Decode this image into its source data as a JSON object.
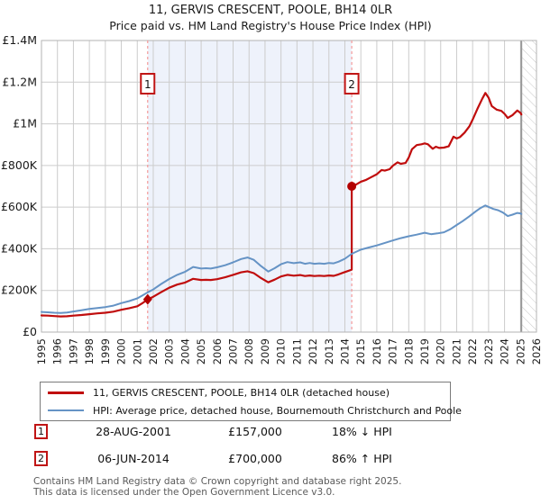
{
  "title": "11, GERVIS CRESCENT, POOLE, BH14 0LR",
  "subtitle": "Price paid vs. HM Land Registry's House Price Index (HPI)",
  "legend": [
    {
      "label": "11, GERVIS CRESCENT, POOLE, BH14 0LR (detached house)",
      "color": "#c00d0d",
      "thickness": 3
    },
    {
      "label": "HPI: Average price, detached house, Bournemouth Christchurch and Poole",
      "color": "#6593c5",
      "thickness": 2.5
    }
  ],
  "annotations": [
    {
      "num": "1",
      "date": "28-AUG-2001",
      "price": "£157,000",
      "delta": "18% ↓ HPI"
    },
    {
      "num": "2",
      "date": "06-JUN-2014",
      "price": "£700,000",
      "delta": "86% ↑ HPI"
    }
  ],
  "footer": {
    "line1": "Contains HM Land Registry data © Crown copyright and database right 2025.",
    "line2": "This data is licensed under the Open Government Licence v3.0."
  },
  "colors": {
    "red_line": "#c00d0d",
    "blue_line": "#6593c5",
    "marker": "#b30000",
    "dashed_line": "#f59a9a",
    "shade": "#eef2fb",
    "grid": "#cccccc",
    "plot_border": "#b3b3b3",
    "hatch_line": "#c8c8c8",
    "hatch_border": "#999999",
    "tick_text": "#1a1a1a",
    "num_box_border": "#c01515"
  },
  "chart_data": {
    "type": "line",
    "title": "11, GERVIS CRESCENT, POOLE, BH14 0LR",
    "subtitle": "Price paid vs. HM Land Registry's House Price Index (HPI)",
    "x_range": [
      1995,
      2026
    ],
    "y_range": [
      0,
      1400000
    ],
    "x_ticks": [
      1995,
      1996,
      1997,
      1998,
      1999,
      2000,
      2001,
      2002,
      2003,
      2004,
      2005,
      2006,
      2007,
      2008,
      2009,
      2010,
      2011,
      2012,
      2013,
      2014,
      2015,
      2016,
      2017,
      2018,
      2019,
      2020,
      2021,
      2022,
      2023,
      2024,
      2025,
      2026
    ],
    "y_ticks": [
      {
        "value": 0,
        "label": "£0"
      },
      {
        "value": 200000,
        "label": "£200K"
      },
      {
        "value": 400000,
        "label": "£400K"
      },
      {
        "value": 600000,
        "label": "£600K"
      },
      {
        "value": 800000,
        "label": "£800K"
      },
      {
        "value": 1000000,
        "label": "£1M"
      },
      {
        "value": 1200000,
        "label": "£1.2M"
      },
      {
        "value": 1400000,
        "label": "£1.4M"
      }
    ],
    "shaded_span": [
      2001.65,
      2014.43
    ],
    "no_data_from": 2025.05,
    "sale_markers": [
      {
        "x": 2001.65,
        "y": 157000,
        "label": "1",
        "shape": "diamond"
      },
      {
        "x": 2014.43,
        "y": 700000,
        "label": "2",
        "shape": "circle"
      }
    ],
    "series": [
      {
        "name": "11, GERVIS CRESCENT, POOLE, BH14 0LR (detached house)",
        "color": "#c00d0d",
        "width": 2.2,
        "points": [
          [
            1995.0,
            80000
          ],
          [
            1995.4,
            79000
          ],
          [
            1995.8,
            77000
          ],
          [
            1996.2,
            75000
          ],
          [
            1996.6,
            76000
          ],
          [
            1997.0,
            79000
          ],
          [
            1997.5,
            82000
          ],
          [
            1998.0,
            86000
          ],
          [
            1998.5,
            90000
          ],
          [
            1999.0,
            93000
          ],
          [
            1999.5,
            98000
          ],
          [
            2000.0,
            107000
          ],
          [
            2000.5,
            115000
          ],
          [
            2001.0,
            124000
          ],
          [
            2001.3,
            138000
          ],
          [
            2001.65,
            157000
          ],
          [
            2002.0,
            170000
          ],
          [
            2002.5,
            192000
          ],
          [
            2003.0,
            213000
          ],
          [
            2003.5,
            228000
          ],
          [
            2004.0,
            238000
          ],
          [
            2004.5,
            256000
          ],
          [
            2005.0,
            250000
          ],
          [
            2005.3,
            251000
          ],
          [
            2005.6,
            250000
          ],
          [
            2006.0,
            254000
          ],
          [
            2006.5,
            263000
          ],
          [
            2007.0,
            275000
          ],
          [
            2007.5,
            287000
          ],
          [
            2007.9,
            292000
          ],
          [
            2008.3,
            283000
          ],
          [
            2008.7,
            262000
          ],
          [
            2009.2,
            239000
          ],
          [
            2009.6,
            252000
          ],
          [
            2010.0,
            267000
          ],
          [
            2010.4,
            275000
          ],
          [
            2010.8,
            271000
          ],
          [
            2011.2,
            274000
          ],
          [
            2011.5,
            269000
          ],
          [
            2011.8,
            272000
          ],
          [
            2012.1,
            269000
          ],
          [
            2012.4,
            271000
          ],
          [
            2012.7,
            269000
          ],
          [
            2013.0,
            272000
          ],
          [
            2013.3,
            270000
          ],
          [
            2013.6,
            277000
          ],
          [
            2014.0,
            288000
          ],
          [
            2014.43,
            300000
          ],
          [
            2014.43,
            700000
          ],
          [
            2014.7,
            708000
          ],
          [
            2015.0,
            722000
          ],
          [
            2015.3,
            730000
          ],
          [
            2015.6,
            742000
          ],
          [
            2016.0,
            758000
          ],
          [
            2016.3,
            778000
          ],
          [
            2016.5,
            775000
          ],
          [
            2016.8,
            782000
          ],
          [
            2017.0,
            798000
          ],
          [
            2017.3,
            815000
          ],
          [
            2017.5,
            808000
          ],
          [
            2017.8,
            812000
          ],
          [
            2018.0,
            838000
          ],
          [
            2018.2,
            878000
          ],
          [
            2018.5,
            898000
          ],
          [
            2018.8,
            902000
          ],
          [
            2019.0,
            906000
          ],
          [
            2019.2,
            902000
          ],
          [
            2019.5,
            880000
          ],
          [
            2019.7,
            890000
          ],
          [
            2019.9,
            884000
          ],
          [
            2020.2,
            886000
          ],
          [
            2020.5,
            892000
          ],
          [
            2020.8,
            938000
          ],
          [
            2021.0,
            930000
          ],
          [
            2021.2,
            936000
          ],
          [
            2021.5,
            958000
          ],
          [
            2021.8,
            988000
          ],
          [
            2022.0,
            1020000
          ],
          [
            2022.3,
            1072000
          ],
          [
            2022.6,
            1120000
          ],
          [
            2022.8,
            1148000
          ],
          [
            2023.0,
            1125000
          ],
          [
            2023.2,
            1085000
          ],
          [
            2023.5,
            1068000
          ],
          [
            2023.8,
            1062000
          ],
          [
            2024.0,
            1048000
          ],
          [
            2024.2,
            1028000
          ],
          [
            2024.5,
            1042000
          ],
          [
            2024.8,
            1064000
          ],
          [
            2025.0,
            1052000
          ],
          [
            2025.05,
            1045000
          ]
        ]
      },
      {
        "name": "HPI: Average price, detached house, Bournemouth Christchurch and Poole",
        "color": "#6593c5",
        "width": 2,
        "points": [
          [
            1995.0,
            97000
          ],
          [
            1995.4,
            95000
          ],
          [
            1995.8,
            93000
          ],
          [
            1996.2,
            92000
          ],
          [
            1996.6,
            94000
          ],
          [
            1997.0,
            99000
          ],
          [
            1997.5,
            105000
          ],
          [
            1998.0,
            111000
          ],
          [
            1998.5,
            116000
          ],
          [
            1999.0,
            120000
          ],
          [
            1999.5,
            127000
          ],
          [
            2000.0,
            139000
          ],
          [
            2000.5,
            149000
          ],
          [
            2001.0,
            162000
          ],
          [
            2001.3,
            175000
          ],
          [
            2001.65,
            191000
          ],
          [
            2002.0,
            205000
          ],
          [
            2002.5,
            231000
          ],
          [
            2003.0,
            255000
          ],
          [
            2003.5,
            275000
          ],
          [
            2004.0,
            290000
          ],
          [
            2004.5,
            313000
          ],
          [
            2005.0,
            305000
          ],
          [
            2005.3,
            307000
          ],
          [
            2005.6,
            305000
          ],
          [
            2006.0,
            311000
          ],
          [
            2006.5,
            321000
          ],
          [
            2007.0,
            335000
          ],
          [
            2007.5,
            351000
          ],
          [
            2007.9,
            358000
          ],
          [
            2008.3,
            347000
          ],
          [
            2008.7,
            320000
          ],
          [
            2009.2,
            291000
          ],
          [
            2009.6,
            307000
          ],
          [
            2010.0,
            326000
          ],
          [
            2010.4,
            336000
          ],
          [
            2010.8,
            331000
          ],
          [
            2011.2,
            335000
          ],
          [
            2011.5,
            328000
          ],
          [
            2011.8,
            332000
          ],
          [
            2012.1,
            328000
          ],
          [
            2012.4,
            330000
          ],
          [
            2012.7,
            328000
          ],
          [
            2013.0,
            332000
          ],
          [
            2013.3,
            330000
          ],
          [
            2013.6,
            338000
          ],
          [
            2014.0,
            352000
          ],
          [
            2014.43,
            376000
          ],
          [
            2015.0,
            396000
          ],
          [
            2015.5,
            406000
          ],
          [
            2016.0,
            416000
          ],
          [
            2016.5,
            428000
          ],
          [
            2017.0,
            440000
          ],
          [
            2017.5,
            451000
          ],
          [
            2018.0,
            460000
          ],
          [
            2018.5,
            468000
          ],
          [
            2019.0,
            477000
          ],
          [
            2019.4,
            470000
          ],
          [
            2019.8,
            474000
          ],
          [
            2020.2,
            479000
          ],
          [
            2020.6,
            494000
          ],
          [
            2021.0,
            514000
          ],
          [
            2021.4,
            534000
          ],
          [
            2021.8,
            556000
          ],
          [
            2022.2,
            580000
          ],
          [
            2022.5,
            596000
          ],
          [
            2022.8,
            608000
          ],
          [
            2023.0,
            601000
          ],
          [
            2023.3,
            591000
          ],
          [
            2023.6,
            585000
          ],
          [
            2023.9,
            574000
          ],
          [
            2024.2,
            557000
          ],
          [
            2024.5,
            564000
          ],
          [
            2024.8,
            572000
          ],
          [
            2025.0,
            570000
          ],
          [
            2025.05,
            567000
          ]
        ]
      }
    ]
  }
}
